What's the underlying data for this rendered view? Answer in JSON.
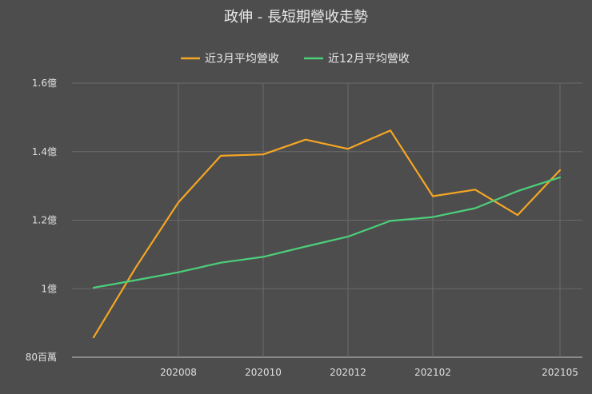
{
  "chart_data": {
    "type": "line",
    "title": "政伸 - 長短期營收走勢",
    "x": [
      "202006",
      "202007",
      "202008",
      "202009",
      "202010",
      "202011",
      "202012",
      "202101",
      "202102",
      "202103",
      "202104",
      "202105"
    ],
    "x_tick_labels": [
      "202008",
      "202010",
      "202012",
      "202102",
      "202105"
    ],
    "y_ticks": [
      {
        "value": 0.8,
        "label": "80百萬"
      },
      {
        "value": 1.0,
        "label": "1億"
      },
      {
        "value": 1.2,
        "label": "1.2億"
      },
      {
        "value": 1.4,
        "label": "1.4億"
      },
      {
        "value": 1.6,
        "label": "1.6億"
      }
    ],
    "ylim": [
      0.8,
      1.6
    ],
    "yunit": "億",
    "grid": true,
    "legend_position": "top",
    "series": [
      {
        "name": "近3月平均營收",
        "color": "#f5a623",
        "values": [
          0.858,
          1.063,
          1.252,
          1.388,
          1.392,
          1.435,
          1.408,
          1.462,
          1.27,
          1.289,
          1.215,
          1.346
        ]
      },
      {
        "name": "近12月平均營收",
        "color": "#4ccf7a",
        "values": [
          1.003,
          1.025,
          1.048,
          1.076,
          1.093,
          1.123,
          1.152,
          1.198,
          1.209,
          1.235,
          1.285,
          1.325
        ]
      }
    ]
  }
}
